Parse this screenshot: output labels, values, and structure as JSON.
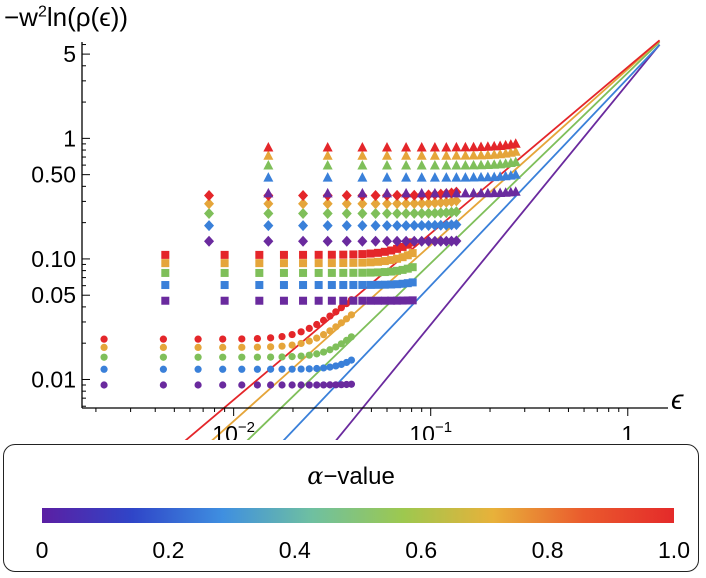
{
  "chart_data": {
    "type": "scatter",
    "ylabel_parts": [
      "−w",
      "2",
      "ln(ρ(ϵ))"
    ],
    "xlabel": "ϵ",
    "x_scale": "log",
    "y_scale": "log",
    "xlim": [
      0.0017,
      1.6
    ],
    "ylim": [
      0.0058,
      6.3
    ],
    "x_ticks": [
      {
        "value": 0.01,
        "label_base": "10",
        "label_exp": "−2"
      },
      {
        "value": 0.1,
        "label_base": "10",
        "label_exp": "−1"
      },
      {
        "value": 1,
        "label_base": "1",
        "label_exp": ""
      }
    ],
    "y_ticks": [
      {
        "value": 0.01,
        "label": "0.01"
      },
      {
        "value": 0.05,
        "label": "0.05"
      },
      {
        "value": 0.1,
        "label": "0.10"
      },
      {
        "value": 0.5,
        "label": "0.50"
      },
      {
        "value": 1,
        "label": "1"
      },
      {
        "value": 5,
        "label": "5"
      }
    ],
    "series": [
      {
        "alpha": 0.0,
        "color": "#6a2a9e",
        "fit_line": {
          "x_start": 0.017,
          "x_end": 1.45,
          "slope": 2.0,
          "y_at_1": 2.85
        }
      },
      {
        "alpha": 0.25,
        "color": "#3a80d9",
        "fit_line": {
          "x_start": 0.0105,
          "x_end": 1.45,
          "slope": 1.72,
          "y_at_1": 3.15
        }
      },
      {
        "alpha": 0.5,
        "color": "#7fbf5a",
        "fit_line": {
          "x_start": 0.0062,
          "x_end": 1.45,
          "slope": 1.58,
          "y_at_1": 3.5
        }
      },
      {
        "alpha": 0.75,
        "color": "#e5a53a",
        "fit_line": {
          "x_start": 0.0032,
          "x_end": 1.45,
          "slope": 1.46,
          "y_at_1": 3.75
        }
      },
      {
        "alpha": 1.0,
        "color": "#e4262a",
        "fit_line": {
          "x_start": 0.0018,
          "x_end": 1.45,
          "slope": 1.38,
          "y_at_1": 3.9
        }
      }
    ],
    "marker_groups": [
      {
        "marker": "circle",
        "x_positions": [
          0.0022,
          0.0044,
          0.0066,
          0.0088,
          0.011,
          0.0132,
          0.0154,
          0.0176,
          0.0198,
          0.022,
          0.0242,
          0.0264,
          0.0286,
          0.0308,
          0.033,
          0.0352,
          0.0374,
          0.0396
        ]
      },
      {
        "marker": "square",
        "x_positions": [
          0.0045,
          0.009,
          0.0135,
          0.018,
          0.0225,
          0.027,
          0.0315,
          0.036,
          0.0405,
          0.045,
          0.0495,
          0.054,
          0.0585,
          0.063,
          0.0675,
          0.072,
          0.0765,
          0.081
        ]
      },
      {
        "marker": "diamond",
        "x_positions": [
          0.0075,
          0.015,
          0.0225,
          0.03,
          0.0375,
          0.045,
          0.0525,
          0.06,
          0.0675,
          0.075,
          0.0825,
          0.09,
          0.0975,
          0.105,
          0.1125,
          0.12,
          0.1275,
          0.135
        ]
      },
      {
        "marker": "triangle",
        "x_positions": [
          0.015,
          0.03,
          0.045,
          0.06,
          0.075,
          0.09,
          0.105,
          0.12,
          0.135,
          0.15,
          0.165,
          0.18,
          0.195,
          0.21,
          0.225,
          0.24,
          0.255,
          0.27
        ]
      }
    ]
  },
  "legend": {
    "title_symbol": "α",
    "title_suffix": "−value",
    "colorbar_stops": [
      "#5b1fa3",
      "#2f45c8",
      "#3f8fe0",
      "#6fc0a0",
      "#9dc84f",
      "#e8b13a",
      "#ea5a2d",
      "#e42a2a"
    ],
    "ticks": [
      {
        "value": 0,
        "label": "0"
      },
      {
        "value": 0.2,
        "label": "0.2"
      },
      {
        "value": 0.4,
        "label": "0.4"
      },
      {
        "value": 0.6,
        "label": "0.6"
      },
      {
        "value": 0.8,
        "label": "0.8"
      },
      {
        "value": 1.0,
        "label": "1.0"
      }
    ]
  }
}
